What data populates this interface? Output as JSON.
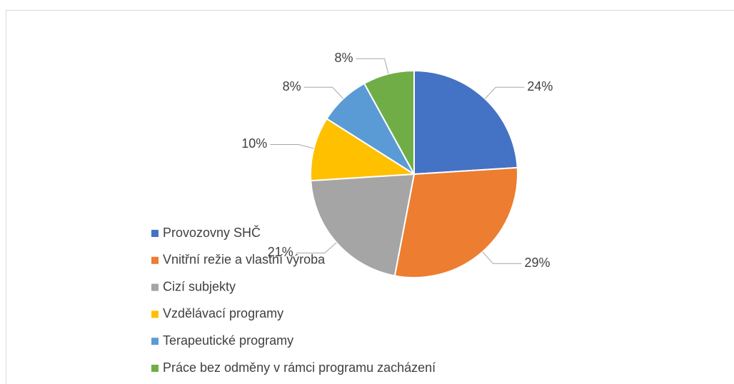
{
  "chart_data": {
    "type": "pie",
    "categories": [
      "Provozovny SHČ",
      "Vnitřní režie a vlastní výroba",
      "Cizí subjekty",
      "Vzdělávací programy",
      "Terapeutické programy",
      "Práce bez odměny v rámci programu zacházení"
    ],
    "values": [
      24,
      29,
      21,
      10,
      8,
      8
    ],
    "value_labels": [
      "24%",
      "29%",
      "21%",
      "10%",
      "8%",
      "8%"
    ],
    "colors": [
      "#4472c4",
      "#ed7d31",
      "#a5a5a5",
      "#ffc000",
      "#5b9bd5",
      "#70ad47"
    ],
    "legend": "bottom-left"
  }
}
